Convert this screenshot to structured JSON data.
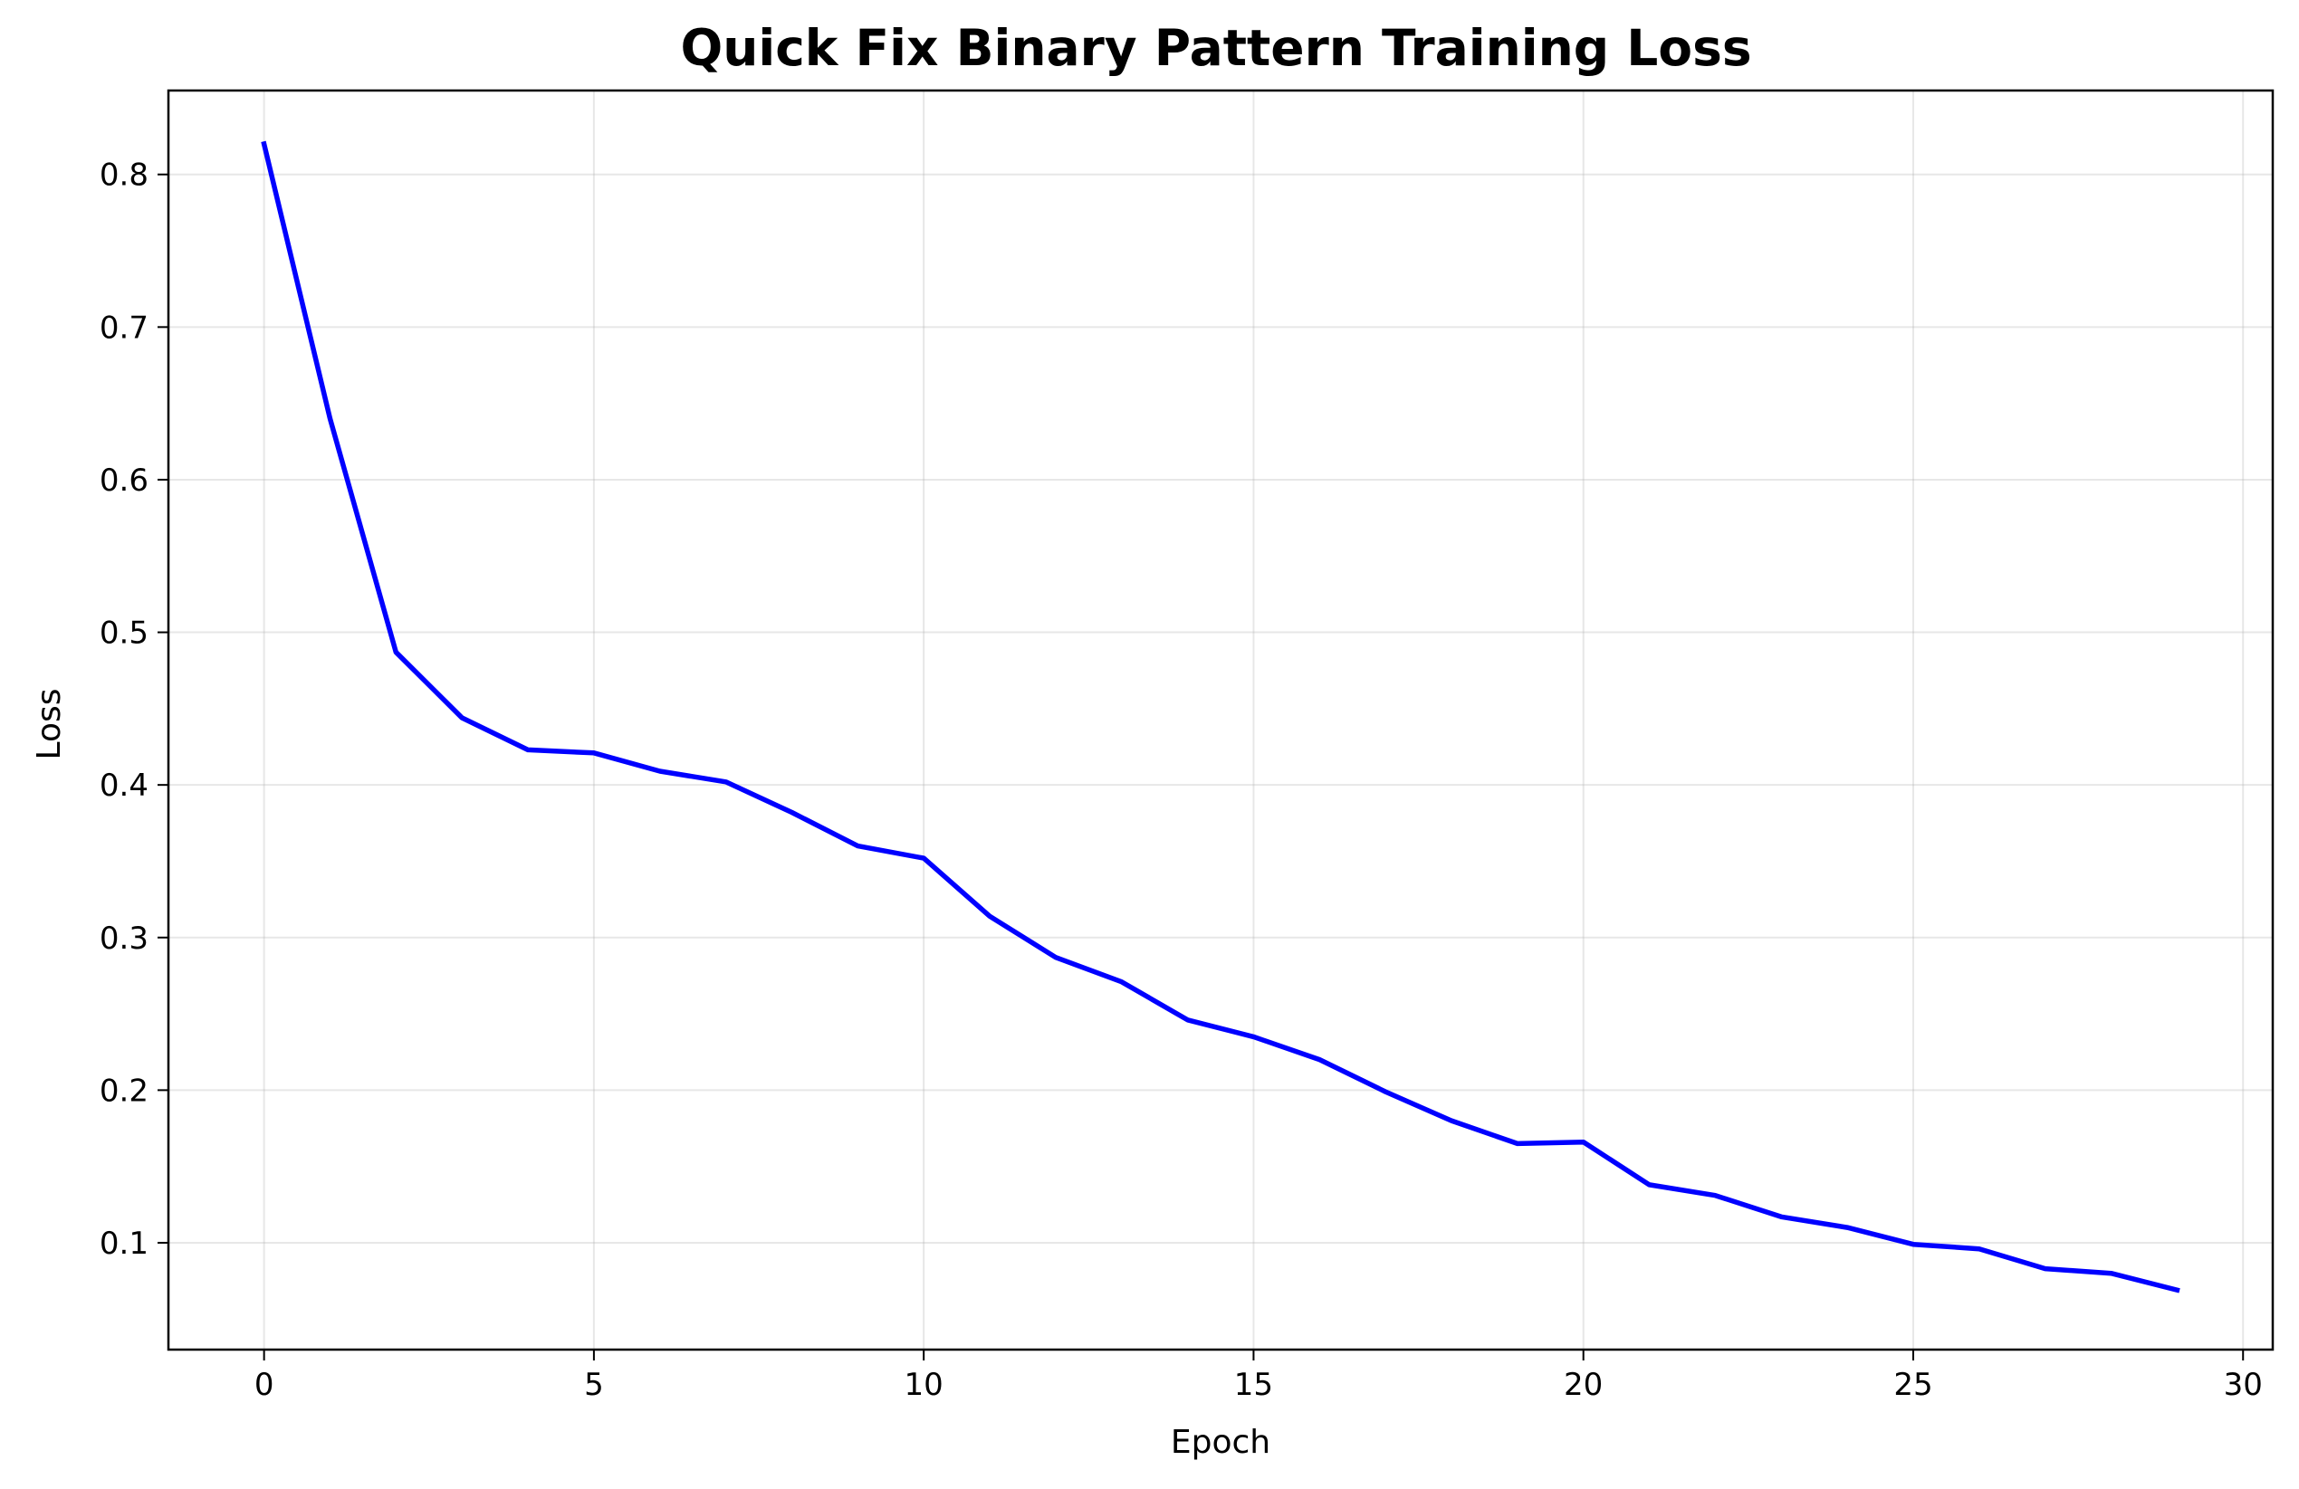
{
  "chart_data": {
    "type": "line",
    "title": "Quick Fix Binary Pattern Training Loss",
    "xlabel": "Epoch",
    "ylabel": "Loss",
    "xlim": [
      -1.45,
      30.45
    ],
    "ylim": [
      0.03,
      0.855
    ],
    "xticks": [
      0,
      5,
      10,
      15,
      20,
      25,
      30
    ],
    "yticks": [
      0.1,
      0.2,
      0.3,
      0.4,
      0.5,
      0.6,
      0.7,
      0.8
    ],
    "xtick_labels": [
      "0",
      "5",
      "10",
      "15",
      "20",
      "25",
      "30"
    ],
    "ytick_labels": [
      "0.1",
      "0.2",
      "0.3",
      "0.4",
      "0.5",
      "0.6",
      "0.7",
      "0.8"
    ],
    "grid": true,
    "series": [
      {
        "color": "#0000ff",
        "x": [
          0,
          1,
          2,
          3,
          4,
          5,
          6,
          7,
          8,
          9,
          10,
          11,
          12,
          13,
          14,
          15,
          16,
          17,
          18,
          19,
          20,
          21,
          22,
          23,
          24,
          25,
          26,
          27,
          28,
          29
        ],
        "y": [
          0.82,
          0.64,
          0.487,
          0.444,
          0.423,
          0.421,
          0.409,
          0.402,
          0.382,
          0.36,
          0.352,
          0.314,
          0.287,
          0.271,
          0.246,
          0.235,
          0.22,
          0.199,
          0.18,
          0.165,
          0.166,
          0.138,
          0.131,
          0.117,
          0.11,
          0.099,
          0.096,
          0.083,
          0.08,
          0.069
        ]
      }
    ]
  }
}
